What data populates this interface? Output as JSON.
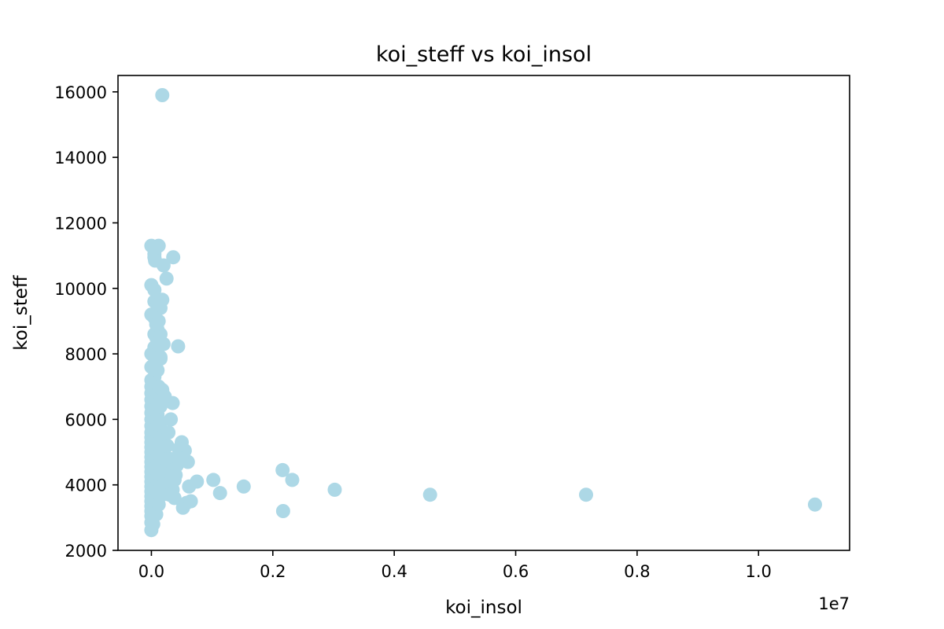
{
  "chart_data": {
    "type": "scatter",
    "title": "koi_steff vs koi_insol",
    "xlabel": "koi_insol",
    "ylabel": "koi_steff",
    "x_offset_label": "1e7",
    "xlim": [
      -0.055,
      1.15
    ],
    "ylim": [
      2000,
      16500
    ],
    "x_ticks": [
      0.0,
      0.2,
      0.4,
      0.6,
      0.8,
      1.0
    ],
    "x_tick_labels": [
      "0.0",
      "0.2",
      "0.4",
      "0.6",
      "0.8",
      "1.0"
    ],
    "y_ticks": [
      2000,
      4000,
      6000,
      8000,
      10000,
      12000,
      14000,
      16000
    ],
    "y_tick_labels": [
      "2000",
      "4000",
      "6000",
      "8000",
      "10000",
      "12000",
      "14000",
      "16000"
    ],
    "grid": false,
    "marker_color": "#add8e6",
    "series": [
      {
        "x": [
          0.0,
          0.0,
          0.0,
          0.0,
          0.0,
          0.0,
          0.0,
          0.0,
          0.0,
          0.0,
          0.0,
          0.0,
          0.0,
          0.0,
          0.0,
          0.0,
          0.0,
          0.0,
          0.0,
          0.0,
          0.0,
          0.0,
          0.0,
          0.0,
          0.0,
          0.0,
          0.0,
          0.0,
          0.0,
          0.0,
          0.0,
          0.0,
          0.0,
          0.005,
          0.005,
          0.005,
          0.005,
          0.005,
          0.005,
          0.005,
          0.005,
          0.005,
          0.005,
          0.005,
          0.005,
          0.005,
          0.005,
          0.005,
          0.005,
          0.005,
          0.005,
          0.005,
          0.005,
          0.005,
          0.005,
          0.01,
          0.01,
          0.01,
          0.01,
          0.01,
          0.01,
          0.01,
          0.01,
          0.01,
          0.01,
          0.01,
          0.01,
          0.01,
          0.01,
          0.015,
          0.015,
          0.015,
          0.015,
          0.015,
          0.015,
          0.015,
          0.015,
          0.015,
          0.003,
          0.008,
          0.012,
          0.018,
          0.02,
          0.022,
          0.025,
          0.03,
          0.026,
          0.028,
          0.032,
          0.035,
          0.012,
          0.01,
          0.015,
          0.005,
          0.008,
          0.01,
          0.012,
          0.01,
          0.018,
          0.012,
          0.008,
          0.006,
          0.02,
          0.025,
          0.015,
          0.018,
          0.022,
          0.012,
          0.015,
          0.008,
          0.02,
          0.035,
          0.038,
          0.042,
          0.046,
          0.05,
          0.055,
          0.06,
          0.062,
          0.04,
          0.035,
          0.045,
          0.05,
          0.03,
          0.038,
          0.052,
          0.058,
          0.065,
          0.075,
          0.102,
          0.113,
          0.152,
          0.217,
          0.232,
          0.216,
          0.302,
          0.459,
          0.716,
          1.093
        ],
        "y": [
          2620,
          2850,
          3050,
          3200,
          3350,
          3500,
          3650,
          3800,
          3950,
          4100,
          4250,
          4400,
          4550,
          4700,
          4850,
          5000,
          5150,
          5300,
          5450,
          5600,
          5800,
          6000,
          6200,
          6400,
          6600,
          6800,
          7000,
          7200,
          7600,
          8000,
          9200,
          11300,
          10100,
          3300,
          3600,
          3900,
          4200,
          4500,
          4800,
          5100,
          5400,
          5700,
          6000,
          6300,
          6600,
          6900,
          7300,
          7700,
          8100,
          8600,
          9100,
          9600,
          9950,
          10950,
          11050,
          3450,
          3750,
          4050,
          4350,
          4650,
          4950,
          5250,
          5550,
          5850,
          6150,
          6450,
          6750,
          7500,
          8300,
          3900,
          4400,
          4900,
          5400,
          5900,
          6400,
          6900,
          7900,
          9400,
          2800,
          3100,
          3400,
          3700,
          3900,
          4200,
          4500,
          4800,
          5200,
          5600,
          6000,
          6500,
          7000,
          7500,
          7850,
          8200,
          8500,
          8750,
          9000,
          9500,
          9650,
          11300,
          11250,
          10850,
          10700,
          10300,
          6600,
          6900,
          6700,
          8250,
          8600,
          8900,
          8300,
          3850,
          4150,
          4600,
          4900,
          5300,
          5050,
          4700,
          3950,
          4300,
          4450,
          5100,
          4800,
          3700,
          3600,
          3300,
          3450,
          3500,
          4100,
          4150,
          3750,
          3950,
          3200,
          4150,
          4450,
          3850,
          3700,
          3700,
          3400
        ]
      },
      {
        "x": [
          0.018,
          0.036,
          0.044,
          0.038,
          0.034
        ],
        "y": [
          15900,
          10950,
          8230,
          4150,
          4250
        ]
      }
    ]
  }
}
